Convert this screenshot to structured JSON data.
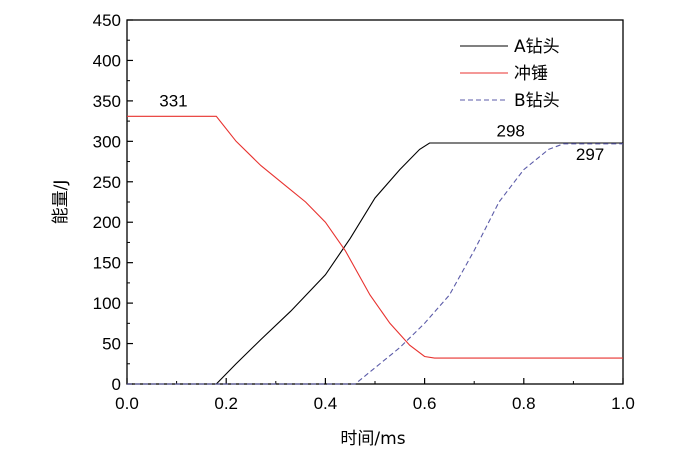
{
  "chart_data": {
    "type": "line",
    "xlabel": "时间/ms",
    "ylabel": "能量/J",
    "xlim": [
      0.0,
      1.0
    ],
    "ylim": [
      0,
      450
    ],
    "x_ticks": [
      0.0,
      0.2,
      0.4,
      0.6,
      0.8,
      1.0
    ],
    "x_tick_labels": [
      "0.0",
      "0.2",
      "0.4",
      "0.6",
      "0.8",
      "1.0"
    ],
    "y_ticks": [
      0,
      50,
      100,
      150,
      200,
      250,
      300,
      350,
      400,
      450
    ],
    "y_tick_labels": [
      "0",
      "50",
      "100",
      "150",
      "200",
      "250",
      "300",
      "350",
      "400",
      "450"
    ],
    "grid": false,
    "legend_position": "top-right",
    "series": [
      {
        "name": "A钻头",
        "color": "#000000",
        "dash": "solid",
        "x": [
          0.0,
          0.18,
          0.22,
          0.27,
          0.33,
          0.4,
          0.45,
          0.5,
          0.55,
          0.59,
          0.61,
          0.7,
          0.8,
          0.9,
          1.0
        ],
        "y": [
          0,
          0,
          25,
          55,
          90,
          135,
          180,
          230,
          265,
          290,
          298,
          298,
          298,
          298,
          298
        ]
      },
      {
        "name": "冲锤",
        "color": "#e8322f",
        "dash": "solid",
        "x": [
          0.0,
          0.1,
          0.18,
          0.22,
          0.27,
          0.32,
          0.36,
          0.4,
          0.44,
          0.49,
          0.53,
          0.57,
          0.6,
          0.62,
          0.7,
          0.8,
          0.9,
          1.0
        ],
        "y": [
          331,
          331,
          331,
          300,
          270,
          245,
          225,
          200,
          165,
          110,
          75,
          48,
          34,
          32,
          32,
          32,
          32,
          32
        ]
      },
      {
        "name": "B钻头",
        "color": "#5b5ba8",
        "dash": "dashed",
        "x": [
          0.0,
          0.1,
          0.2,
          0.3,
          0.4,
          0.46,
          0.5,
          0.55,
          0.6,
          0.65,
          0.7,
          0.75,
          0.8,
          0.85,
          0.88,
          0.9,
          1.0
        ],
        "y": [
          0,
          0,
          0,
          0,
          0,
          0,
          20,
          45,
          75,
          110,
          165,
          225,
          265,
          290,
          297,
          297,
          297
        ]
      }
    ],
    "annotations": [
      {
        "text": "331",
        "x": 0.065,
        "y": 343
      },
      {
        "text": "298",
        "x": 0.745,
        "y": 306
      },
      {
        "text": "297",
        "x": 0.905,
        "y": 277
      }
    ]
  }
}
